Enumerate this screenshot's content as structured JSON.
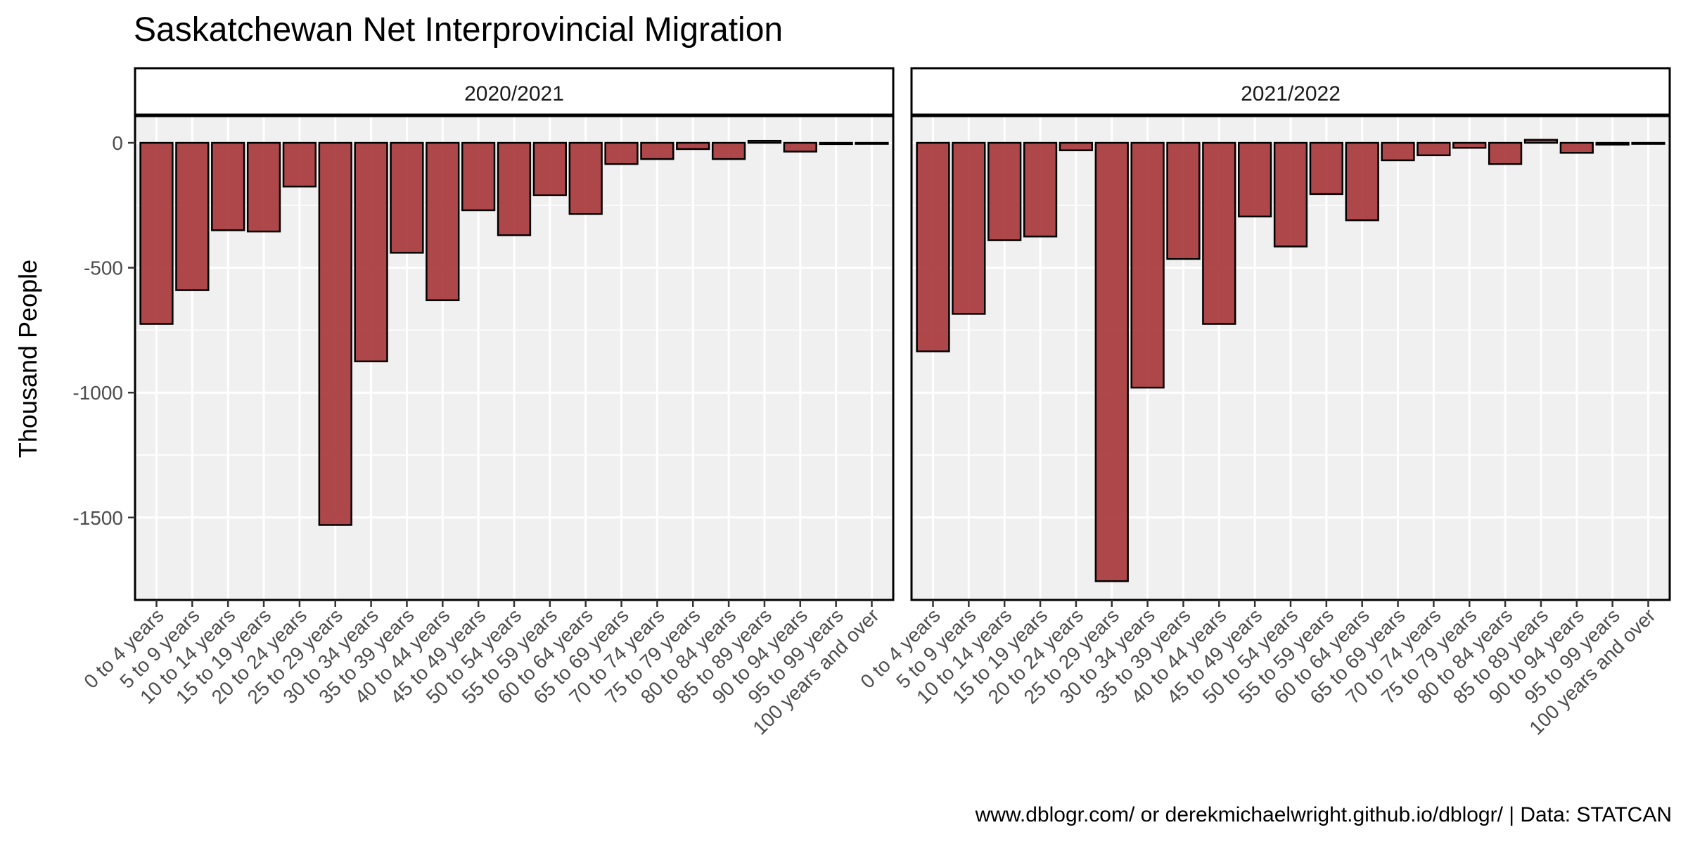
{
  "chart_data": {
    "type": "bar",
    "title": "Saskatchewan Net Interprovincial Migration",
    "ylabel": "Thousand People",
    "xlabel": "",
    "caption": "www.dblogr.com/ or derekmichaelwright.github.io/dblogr/ | Data: STATCAN",
    "ylim": [
      -1830,
      110
    ],
    "yticks": [
      0,
      -500,
      -1000,
      -1500
    ],
    "ytick_labels": [
      "0",
      "-500",
      "-1000",
      "-1500"
    ],
    "grid": true,
    "bar_color": "#a8383b",
    "panel_bg": "#f0f0f0",
    "categories": [
      "0 to 4 years",
      "5 to 9 years",
      "10 to 14 years",
      "15 to 19 years",
      "20 to 24 years",
      "25 to 29 years",
      "30 to 34 years",
      "35 to 39 years",
      "40 to 44 years",
      "45 to 49 years",
      "50 to 54 years",
      "55 to 59 years",
      "60 to 64 years",
      "65 to 69 years",
      "70 to 74 years",
      "75 to 79 years",
      "80 to 84 years",
      "85 to 89 years",
      "90 to 94 years",
      "95 to 99 years",
      "100 years and over"
    ],
    "panels": [
      {
        "name": "2020/2021",
        "values": [
          -725,
          -590,
          -350,
          -355,
          -175,
          -1530,
          -875,
          -440,
          -630,
          -270,
          -370,
          -210,
          -285,
          -85,
          -65,
          -25,
          -65,
          8,
          -35,
          -5,
          -2
        ]
      },
      {
        "name": "2021/2022",
        "values": [
          -835,
          -685,
          -390,
          -375,
          -30,
          -1755,
          -980,
          -465,
          -725,
          -295,
          -415,
          -205,
          -310,
          -70,
          -50,
          -20,
          -85,
          12,
          -40,
          -7,
          -2
        ]
      }
    ]
  }
}
